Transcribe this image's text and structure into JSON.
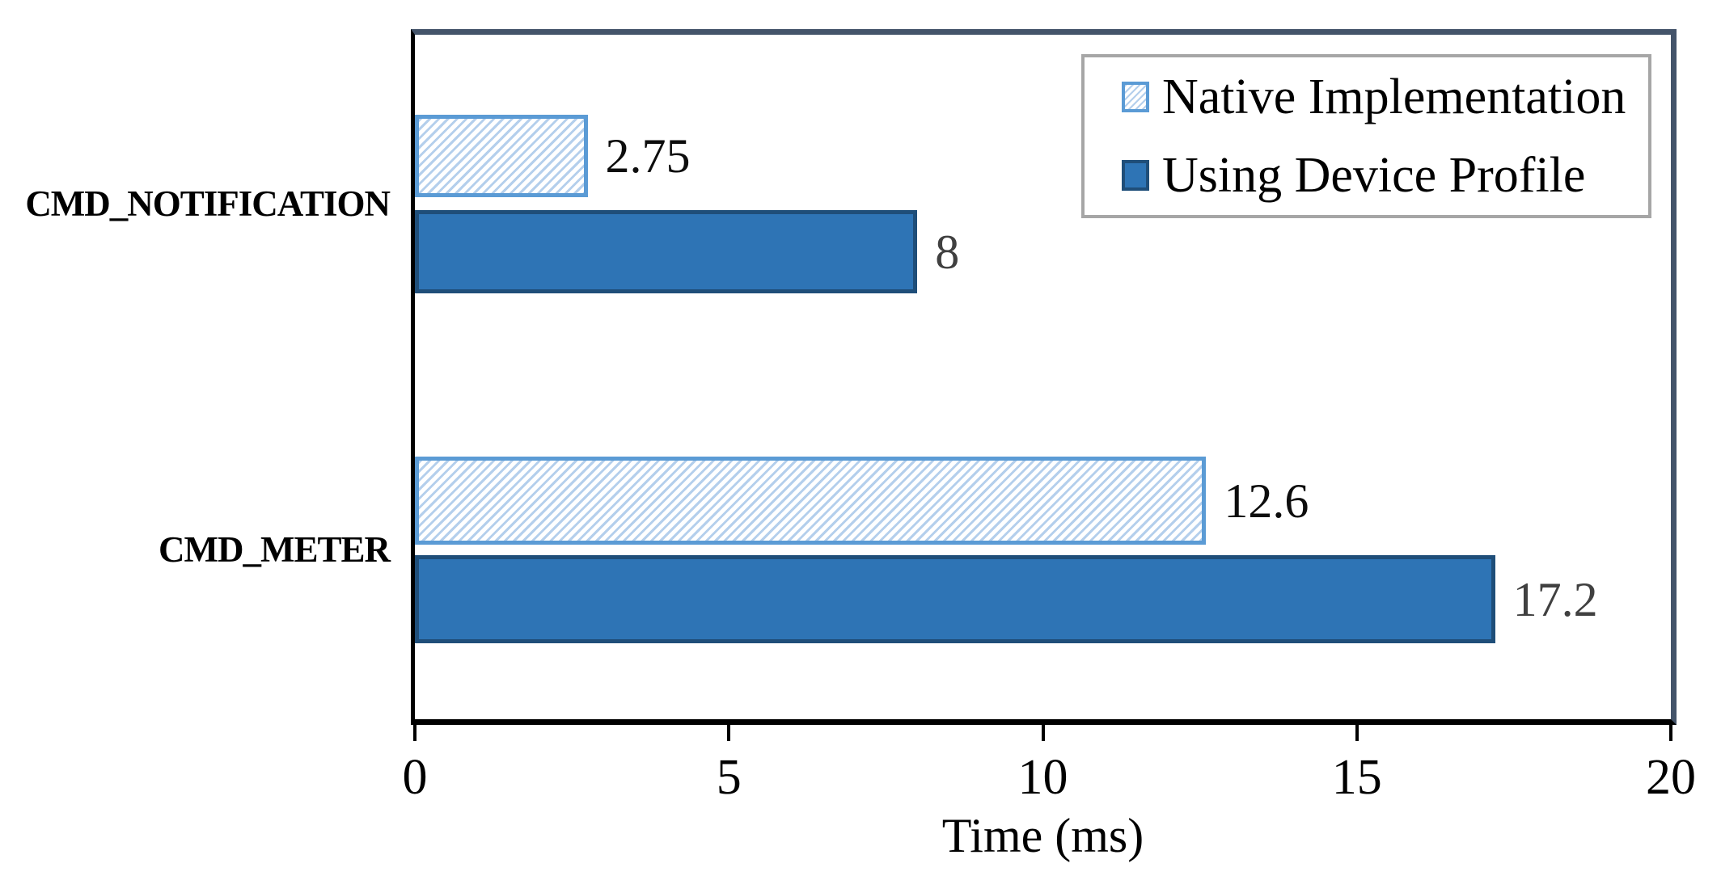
{
  "chart_data": {
    "type": "bar",
    "orientation": "horizontal",
    "title": "",
    "categories": [
      "CMD_NOTIFICATION",
      "CMD_METER"
    ],
    "series": [
      {
        "name": "Native Implementation",
        "style": "hatched",
        "values": [
          2.75,
          12.6
        ],
        "value_labels": [
          "2.75",
          "12.6"
        ],
        "fill": "#FFFFFF",
        "hatch_color": "#B4CFEC",
        "border_color": "#5B9BD5"
      },
      {
        "name": "Using Device Profile",
        "style": "solid",
        "values": [
          8,
          17.2
        ],
        "value_labels": [
          "8",
          "17.2"
        ],
        "fill": "#2E74B5",
        "border_color": "#1F4E79"
      }
    ],
    "xlabel": "Time (ms)",
    "ylabel": "",
    "xlim": [
      0,
      20
    ],
    "xticks": [
      0,
      5,
      10,
      15,
      20
    ],
    "grid": false,
    "legend_position": "top-right"
  },
  "colors": {
    "plot_border": "#44546A",
    "axis_line": "#000000",
    "legend_border": "#A6A6A6",
    "value_label_native": "#0D0D0D",
    "value_label_device": "#404040",
    "background": "#FFFFFF"
  }
}
